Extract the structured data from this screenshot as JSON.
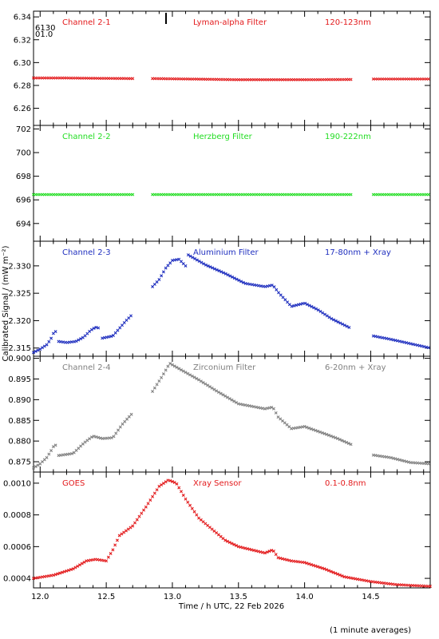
{
  "figure": {
    "xlabel": "Time / h UTC, 22 Feb 2026",
    "ylabel": "Calibrated Signal / (mW m⁻²)",
    "footnote": "(1 minute averages)",
    "corner_labels": [
      "6130",
      "01.0"
    ]
  },
  "chart_data": [
    {
      "type": "scatter",
      "panel": "Channel 2-1",
      "labels": [
        "Channel 2-1",
        "Lyman-alpha Filter",
        "120-123nm"
      ],
      "color": "#e31a1c",
      "xlim": [
        11.95,
        14.95
      ],
      "ylim": [
        6.245,
        6.345
      ],
      "yticks": [
        6.26,
        6.28,
        6.3,
        6.32,
        6.34
      ],
      "ytick_labels": [
        "6.26",
        "6.28",
        "6.30",
        "6.32",
        "6.34"
      ],
      "segments": [
        {
          "x_start": 11.95,
          "x_end": 12.7,
          "points": [
            [
              11.95,
              6.2865
            ],
            [
              12.2,
              6.2865
            ],
            [
              12.45,
              6.2862
            ],
            [
              12.7,
              6.286
            ]
          ]
        },
        {
          "x_start": 12.85,
          "x_end": 14.35,
          "points": [
            [
              12.85,
              6.286
            ],
            [
              13.2,
              6.2855
            ],
            [
              13.5,
              6.285
            ],
            [
              14.0,
              6.285
            ],
            [
              14.35,
              6.2852
            ]
          ]
        },
        {
          "x_start": 14.52,
          "x_end": 14.95,
          "points": [
            [
              14.52,
              6.2856
            ],
            [
              14.95,
              6.2856
            ]
          ]
        }
      ]
    },
    {
      "type": "scatter",
      "panel": "Channel 2-2",
      "labels": [
        "Channel 2-2",
        "Herzberg Filter",
        "190-222nm"
      ],
      "color": "#22dd22",
      "xlim": [
        11.95,
        14.95
      ],
      "ylim": [
        692.5,
        702.3
      ],
      "yticks": [
        694,
        696,
        698,
        700,
        702
      ],
      "ytick_labels": [
        "694",
        "696",
        "698",
        "700",
        "702"
      ],
      "segments": [
        {
          "x_start": 11.95,
          "x_end": 12.7,
          "points": [
            [
              11.95,
              696.45
            ],
            [
              12.7,
              696.45
            ]
          ]
        },
        {
          "x_start": 12.85,
          "x_end": 14.35,
          "points": [
            [
              12.85,
              696.45
            ],
            [
              14.35,
              696.45
            ]
          ]
        },
        {
          "x_start": 14.52,
          "x_end": 14.95,
          "points": [
            [
              14.52,
              696.45
            ],
            [
              14.95,
              696.45
            ]
          ]
        }
      ]
    },
    {
      "type": "scatter",
      "panel": "Channel 2-3",
      "labels": [
        "Channel 2-3",
        "Aluminium Filter",
        "17-80nm + Xray"
      ],
      "color": "#1f2fbf",
      "xlim": [
        11.95,
        14.95
      ],
      "ylim": [
        2.3135,
        2.3345
      ],
      "yticks": [
        2.315,
        2.32,
        2.325,
        2.33
      ],
      "ytick_labels": [
        "2.315",
        "2.320",
        "2.325",
        "2.330"
      ],
      "segments": [
        {
          "x_start": 11.95,
          "x_end": 12.13,
          "points": [
            [
              11.95,
              2.3142
            ],
            [
              12.0,
              2.3148
            ],
            [
              12.05,
              2.3156
            ],
            [
              12.08,
              2.3166
            ],
            [
              12.11,
              2.3182
            ],
            [
              12.13,
              2.3176
            ]
          ]
        },
        {
          "x_start": 12.14,
          "x_end": 12.45,
          "points": [
            [
              12.14,
              2.3162
            ],
            [
              12.2,
              2.316
            ],
            [
              12.27,
              2.3162
            ],
            [
              12.33,
              2.317
            ],
            [
              12.38,
              2.3182
            ],
            [
              12.42,
              2.3188
            ],
            [
              12.45,
              2.3186
            ]
          ]
        },
        {
          "x_start": 12.47,
          "x_end": 12.7,
          "points": [
            [
              12.47,
              2.3168
            ],
            [
              12.55,
              2.3172
            ],
            [
              12.6,
              2.3186
            ],
            [
              12.65,
              2.32
            ],
            [
              12.7,
              2.3212
            ]
          ]
        },
        {
          "x_start": 12.85,
          "x_end": 13.1,
          "points": [
            [
              12.85,
              2.3262
            ],
            [
              12.9,
              2.3275
            ],
            [
              12.95,
              2.3296
            ],
            [
              13.0,
              2.331
            ],
            [
              13.05,
              2.3312
            ],
            [
              13.1,
              2.33
            ]
          ]
        },
        {
          "x_start": 13.12,
          "x_end": 14.35,
          "points": [
            [
              13.12,
              2.332
            ],
            [
              13.25,
              2.3302
            ],
            [
              13.4,
              2.3286
            ],
            [
              13.55,
              2.3268
            ],
            [
              13.7,
              2.3262
            ],
            [
              13.76,
              2.3265
            ],
            [
              13.8,
              2.3252
            ],
            [
              13.9,
              2.3226
            ],
            [
              14.0,
              2.3232
            ],
            [
              14.1,
              2.322
            ],
            [
              14.2,
              2.3204
            ],
            [
              14.35,
              2.3186
            ]
          ]
        },
        {
          "x_start": 14.52,
          "x_end": 14.95,
          "points": [
            [
              14.52,
              2.3172
            ],
            [
              14.65,
              2.3166
            ],
            [
              14.8,
              2.3158
            ],
            [
              14.95,
              2.315
            ]
          ]
        }
      ]
    },
    {
      "type": "scatter",
      "panel": "Channel 2-4",
      "labels": [
        "Channel 2-4",
        "Zirconium Filter",
        "6-20nm + Xray"
      ],
      "color": "#808080",
      "xlim": [
        11.95,
        14.95
      ],
      "ylim": [
        0.8725,
        0.9005
      ],
      "yticks": [
        0.875,
        0.88,
        0.885,
        0.89,
        0.895,
        0.9
      ],
      "ytick_labels": [
        "0.875",
        "0.880",
        "0.885",
        "0.890",
        "0.895",
        "0.900"
      ],
      "segments": [
        {
          "x_start": 11.95,
          "x_end": 12.13,
          "points": [
            [
              11.95,
              0.8735
            ],
            [
              12.0,
              0.8745
            ],
            [
              12.05,
              0.876
            ],
            [
              12.08,
              0.8775
            ],
            [
              12.11,
              0.8792
            ],
            [
              12.13,
              0.8786
            ]
          ]
        },
        {
          "x_start": 12.14,
          "x_end": 12.7,
          "points": [
            [
              12.14,
              0.8765
            ],
            [
              12.25,
              0.877
            ],
            [
              12.33,
              0.8795
            ],
            [
              12.4,
              0.8812
            ],
            [
              12.47,
              0.8806
            ],
            [
              12.55,
              0.8808
            ],
            [
              12.62,
              0.884
            ],
            [
              12.7,
              0.8868
            ]
          ]
        },
        {
          "x_start": 12.85,
          "x_end": 14.35,
          "points": [
            [
              12.85,
              0.892
            ],
            [
              12.92,
              0.8955
            ],
            [
              12.98,
              0.8988
            ],
            [
              13.05,
              0.8975
            ],
            [
              13.2,
              0.8948
            ],
            [
              13.35,
              0.8918
            ],
            [
              13.5,
              0.889
            ],
            [
              13.7,
              0.8878
            ],
            [
              13.76,
              0.8882
            ],
            [
              13.8,
              0.8858
            ],
            [
              13.9,
              0.883
            ],
            [
              14.0,
              0.8835
            ],
            [
              14.15,
              0.8818
            ],
            [
              14.25,
              0.8806
            ],
            [
              14.35,
              0.8792
            ]
          ]
        },
        {
          "x_start": 14.52,
          "x_end": 14.95,
          "points": [
            [
              14.52,
              0.8766
            ],
            [
              14.65,
              0.876
            ],
            [
              14.8,
              0.8748
            ],
            [
              14.95,
              0.8745
            ]
          ]
        }
      ]
    },
    {
      "type": "scatter",
      "panel": "GOES",
      "labels": [
        "GOES",
        "Xray Sensor",
        "0.1-0.8nm"
      ],
      "color": "#e31a1c",
      "xlim": [
        11.95,
        14.95
      ],
      "ylim": [
        0.00034,
        0.00107
      ],
      "yticks": [
        0.0004,
        0.0006,
        0.0008,
        0.001
      ],
      "ytick_labels": [
        "0.0004",
        "0.0006",
        "0.0008",
        "0.0010"
      ],
      "segments": [
        {
          "x_start": 11.95,
          "x_end": 14.95,
          "points": [
            [
              11.95,
              0.0004
            ],
            [
              12.1,
              0.00042
            ],
            [
              12.25,
              0.00046
            ],
            [
              12.35,
              0.00051
            ],
            [
              12.42,
              0.00052
            ],
            [
              12.5,
              0.00051
            ],
            [
              12.55,
              0.00058
            ],
            [
              12.6,
              0.00067
            ],
            [
              12.7,
              0.00073
            ],
            [
              12.8,
              0.00085
            ],
            [
              12.9,
              0.00098
            ],
            [
              12.97,
              0.00102
            ],
            [
              13.03,
              0.001
            ],
            [
              13.1,
              0.0009
            ],
            [
              13.2,
              0.00078
            ],
            [
              13.3,
              0.00071
            ],
            [
              13.4,
              0.00064
            ],
            [
              13.5,
              0.0006
            ],
            [
              13.6,
              0.00058
            ],
            [
              13.7,
              0.00056
            ],
            [
              13.76,
              0.00058
            ],
            [
              13.8,
              0.00053
            ],
            [
              13.9,
              0.00051
            ],
            [
              14.0,
              0.0005
            ],
            [
              14.15,
              0.00046
            ],
            [
              14.3,
              0.00041
            ],
            [
              14.5,
              0.00038
            ],
            [
              14.7,
              0.00036
            ],
            [
              14.95,
              0.00035
            ]
          ]
        }
      ]
    }
  ],
  "x_axis": {
    "ticks": [
      12.0,
      12.5,
      13.0,
      13.5,
      14.0,
      14.5
    ],
    "tick_labels": [
      "12.0",
      "12.5",
      "13.0",
      "13.5",
      "14.0",
      "14.5"
    ]
  }
}
